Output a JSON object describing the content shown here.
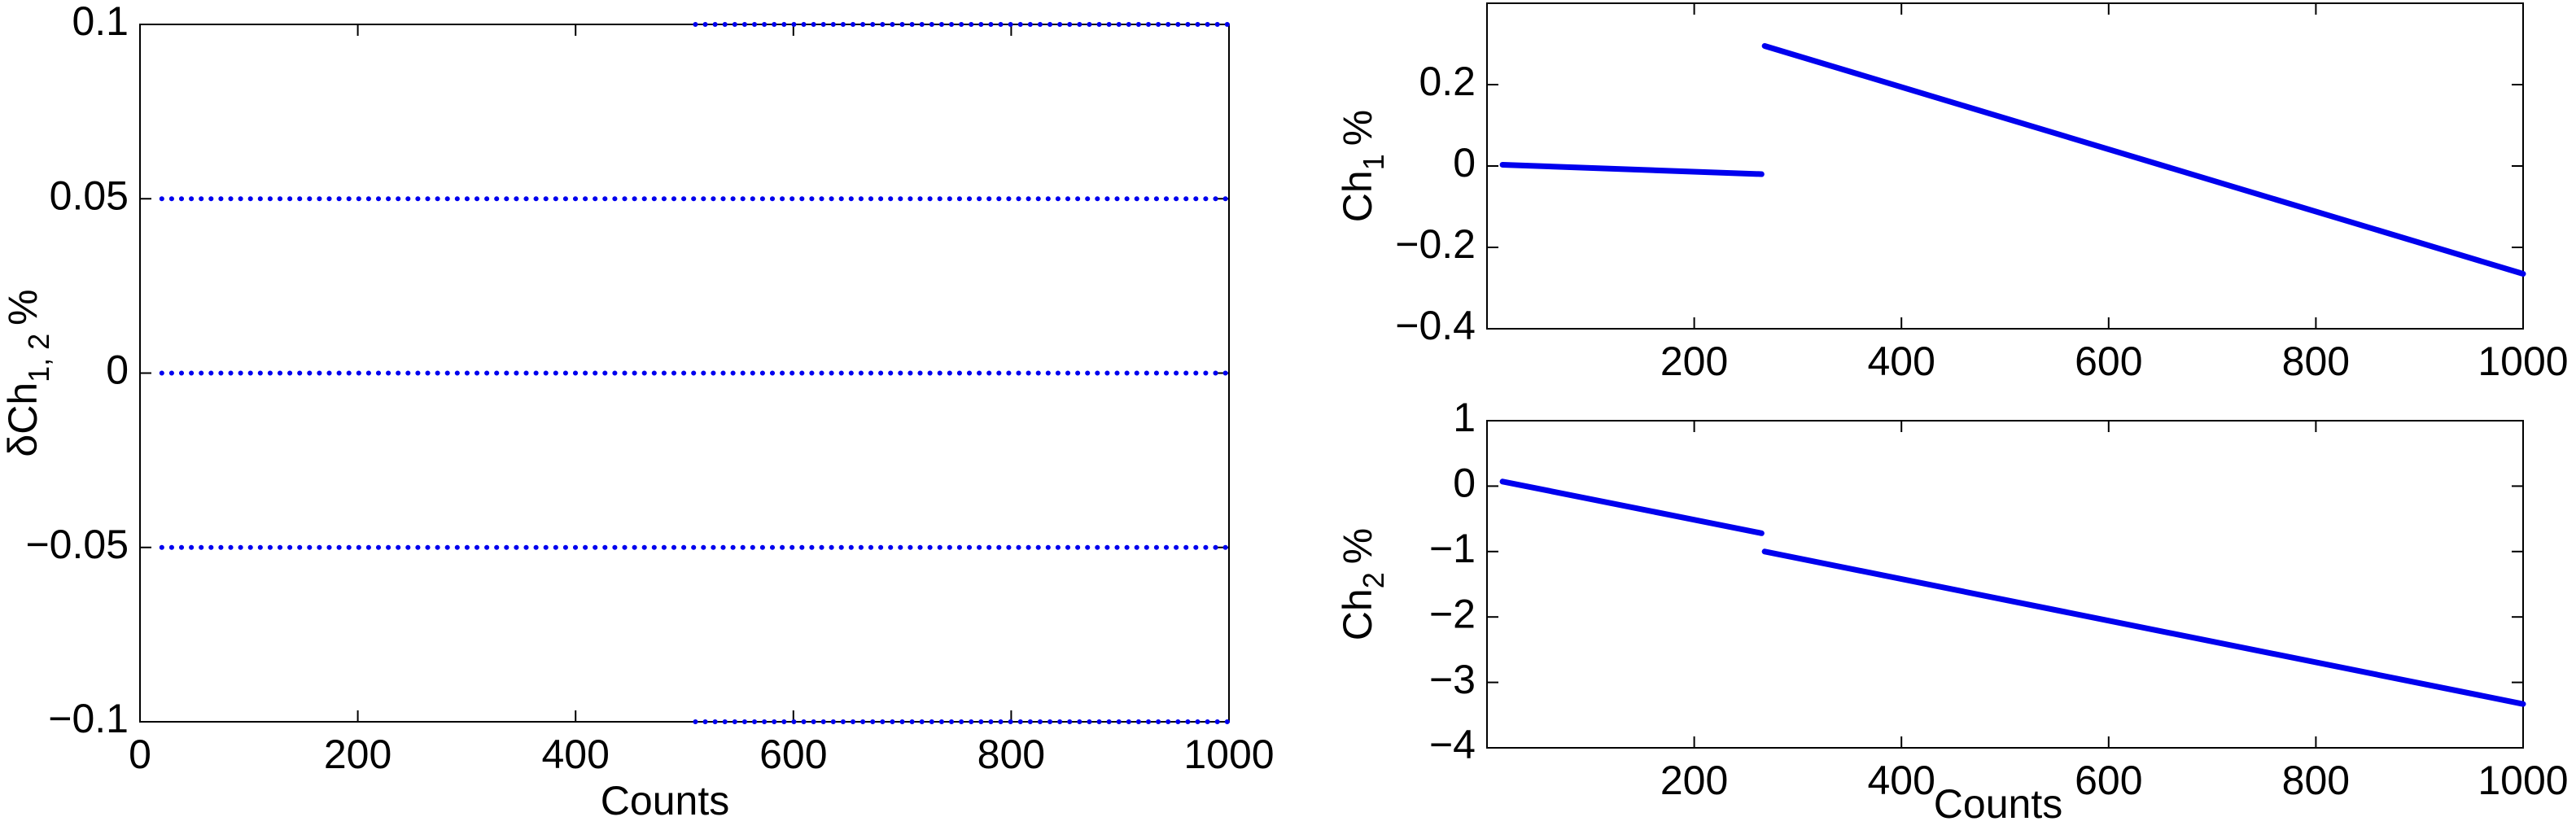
{
  "chart_data": [
    {
      "type": "line",
      "ylabel": {
        "text": "δCh",
        "sub": "1, 2",
        "suffix": "%"
      },
      "xlabel": "Counts",
      "xlim": [
        0,
        1000
      ],
      "xticks": [
        0,
        200,
        400,
        600,
        800,
        1000
      ],
      "ylim": [
        -0.1,
        0.1
      ],
      "yticks": [
        {
          "value": -0.1,
          "label": "−0.1"
        },
        {
          "value": -0.05,
          "label": "−0.05"
        },
        0,
        0.05,
        0.1
      ],
      "linestyle": "dotted",
      "series": [
        {
          "color": "#0000ee",
          "x": [
            510,
            1000
          ],
          "values": [
            0.1,
            0.1
          ]
        },
        {
          "color": "#0000ee",
          "x": [
            20,
            1000
          ],
          "values": [
            0.05,
            0.05
          ]
        },
        {
          "color": "#0000ee",
          "x": [
            20,
            1000
          ],
          "values": [
            0,
            0
          ]
        },
        {
          "color": "#0000ee",
          "x": [
            20,
            1000
          ],
          "values": [
            -0.05,
            -0.05
          ]
        },
        {
          "color": "#0000ee",
          "x": [
            510,
            1000
          ],
          "values": [
            -0.1,
            -0.1
          ]
        }
      ]
    },
    {
      "type": "line",
      "ylabel": {
        "text": "Ch",
        "sub": "1",
        "suffix": "%"
      },
      "xlim": [
        0,
        1000
      ],
      "xticks": [
        200,
        400,
        600,
        800,
        1000
      ],
      "ylim": [
        -0.4,
        0.4
      ],
      "yticks": [
        {
          "value": -0.4,
          "label": "−0.4"
        },
        {
          "value": -0.2,
          "label": "−0.2"
        },
        0,
        0.2
      ],
      "linestyle": "solid",
      "series": [
        {
          "color": "#0000ee",
          "x": [
            15,
            265
          ],
          "values": [
            0.003,
            -0.02
          ]
        },
        {
          "color": "#0000ee",
          "x": [
            268,
            1000
          ],
          "values": [
            0.295,
            -0.265
          ]
        }
      ]
    },
    {
      "type": "line",
      "ylabel": {
        "text": "Ch",
        "sub": "2",
        "suffix": "%"
      },
      "xlabel": "Counts",
      "xlim": [
        0,
        1000
      ],
      "xticks": [
        200,
        400,
        600,
        800,
        1000
      ],
      "ylim": [
        -4,
        1
      ],
      "yticks": [
        {
          "value": -4,
          "label": "−4"
        },
        {
          "value": -3,
          "label": "−3"
        },
        {
          "value": -2,
          "label": "−2"
        },
        {
          "value": -1,
          "label": "−1"
        },
        0,
        1
      ],
      "linestyle": "solid",
      "series": [
        {
          "color": "#0000ee",
          "x": [
            15,
            265
          ],
          "values": [
            0.07,
            -0.72
          ]
        },
        {
          "color": "#0000ee",
          "x": [
            268,
            1000
          ],
          "values": [
            -1.0,
            -3.33
          ]
        }
      ]
    }
  ]
}
